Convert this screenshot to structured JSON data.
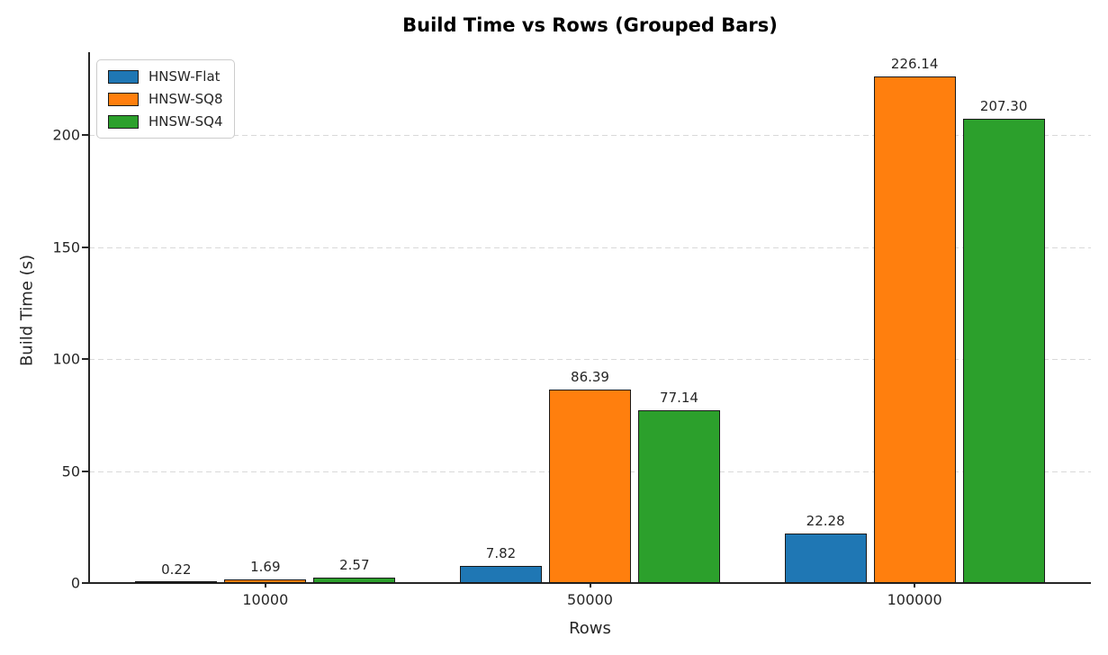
{
  "chart_data": {
    "type": "bar",
    "title": "Build Time vs Rows (Grouped Bars)",
    "xlabel": "Rows",
    "ylabel": "Build Time (s)",
    "categories": [
      "10000",
      "50000",
      "100000"
    ],
    "series": [
      {
        "name": "HNSW-Flat",
        "color": "#1f77b4",
        "values": [
          0.22,
          7.82,
          22.28
        ],
        "labels": [
          "0.22",
          "7.82",
          "22.28"
        ]
      },
      {
        "name": "HNSW-SQ8",
        "color": "#ff7f0e",
        "values": [
          1.69,
          86.39,
          226.14
        ],
        "labels": [
          "1.69",
          "86.39",
          "226.14"
        ]
      },
      {
        "name": "HNSW-SQ4",
        "color": "#2ca02c",
        "values": [
          2.57,
          77.14,
          207.3
        ],
        "labels": [
          "2.57",
          "77.14",
          "207.30"
        ]
      }
    ],
    "yticks": [
      0,
      50,
      100,
      150,
      200
    ],
    "ylim": [
      0,
      237
    ],
    "grid": "horizontal-dashed",
    "legend_position": "upper-left",
    "colors": {
      "bar_edge": "#1a1a1a",
      "spine": "#262626",
      "gridline": "#d9d9d9",
      "text": "#262626",
      "title": "#000000",
      "background": "#ffffff"
    }
  }
}
